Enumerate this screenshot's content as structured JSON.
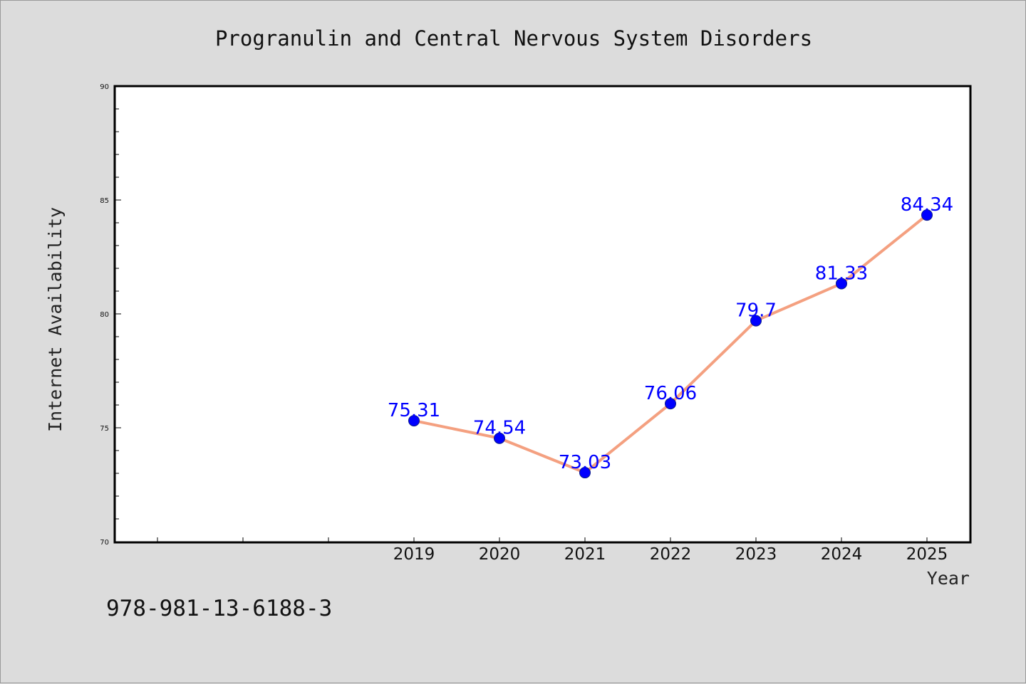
{
  "chart_data": {
    "type": "line",
    "title": "Progranulin and Central Nervous System Disorders",
    "xlabel": "Year",
    "ylabel": "Internet Availability",
    "x": [
      "2019",
      "2020",
      "2021",
      "2022",
      "2023",
      "2024",
      "2025"
    ],
    "series": [
      {
        "values": [
          75.31,
          74.54,
          73.03,
          76.06,
          79.7,
          81.33,
          84.34
        ],
        "labels": [
          "75.31",
          "74.54",
          "73.03",
          "76.06",
          "79.7",
          "81.33",
          "84.34"
        ]
      }
    ],
    "ylim": [
      70,
      90
    ],
    "yticks": [
      "70",
      "75",
      "80",
      "85",
      "90"
    ],
    "grid": false,
    "legend": "none"
  },
  "footer": {
    "isbn": "978-981-13-6188-3"
  },
  "colors": {
    "line": "#f4a080",
    "marker": "#0000ff",
    "marker_edge": "#0a1a8a",
    "data_label": "#0000ff",
    "plot_bg": "#ffffff",
    "page_bg": "#dcdcdc"
  }
}
